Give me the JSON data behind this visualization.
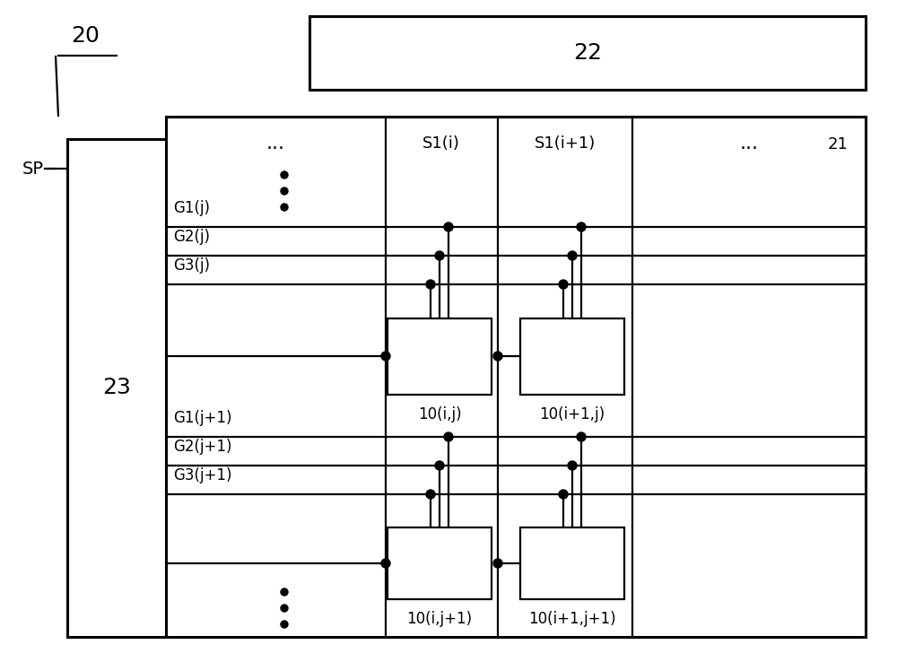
{
  "fig_width": 10.0,
  "fig_height": 7.38,
  "dpi": 100,
  "bg_color": "#ffffff",
  "line_color": "#000000",
  "lw": 1.6,
  "label_20": "20",
  "label_22": "22",
  "label_21": "21",
  "label_23": "23",
  "label_SP": "SP",
  "label_S1i": "S1(i)",
  "label_S1i1": "S1(i+1)",
  "label_G1j": "G1(j)",
  "label_G2j": "G2(j)",
  "label_G3j": "G3(j)",
  "label_G1j1": "G1(j+1)",
  "label_G2j1": "G2(j+1)",
  "label_G3j1": "G3(j+1)",
  "label_10ij": "10(i,j)",
  "label_10i1j": "10(i+1,j)",
  "label_10ij1": "10(i,j+1)",
  "label_10i1j1": "10(i+1,j+1)"
}
